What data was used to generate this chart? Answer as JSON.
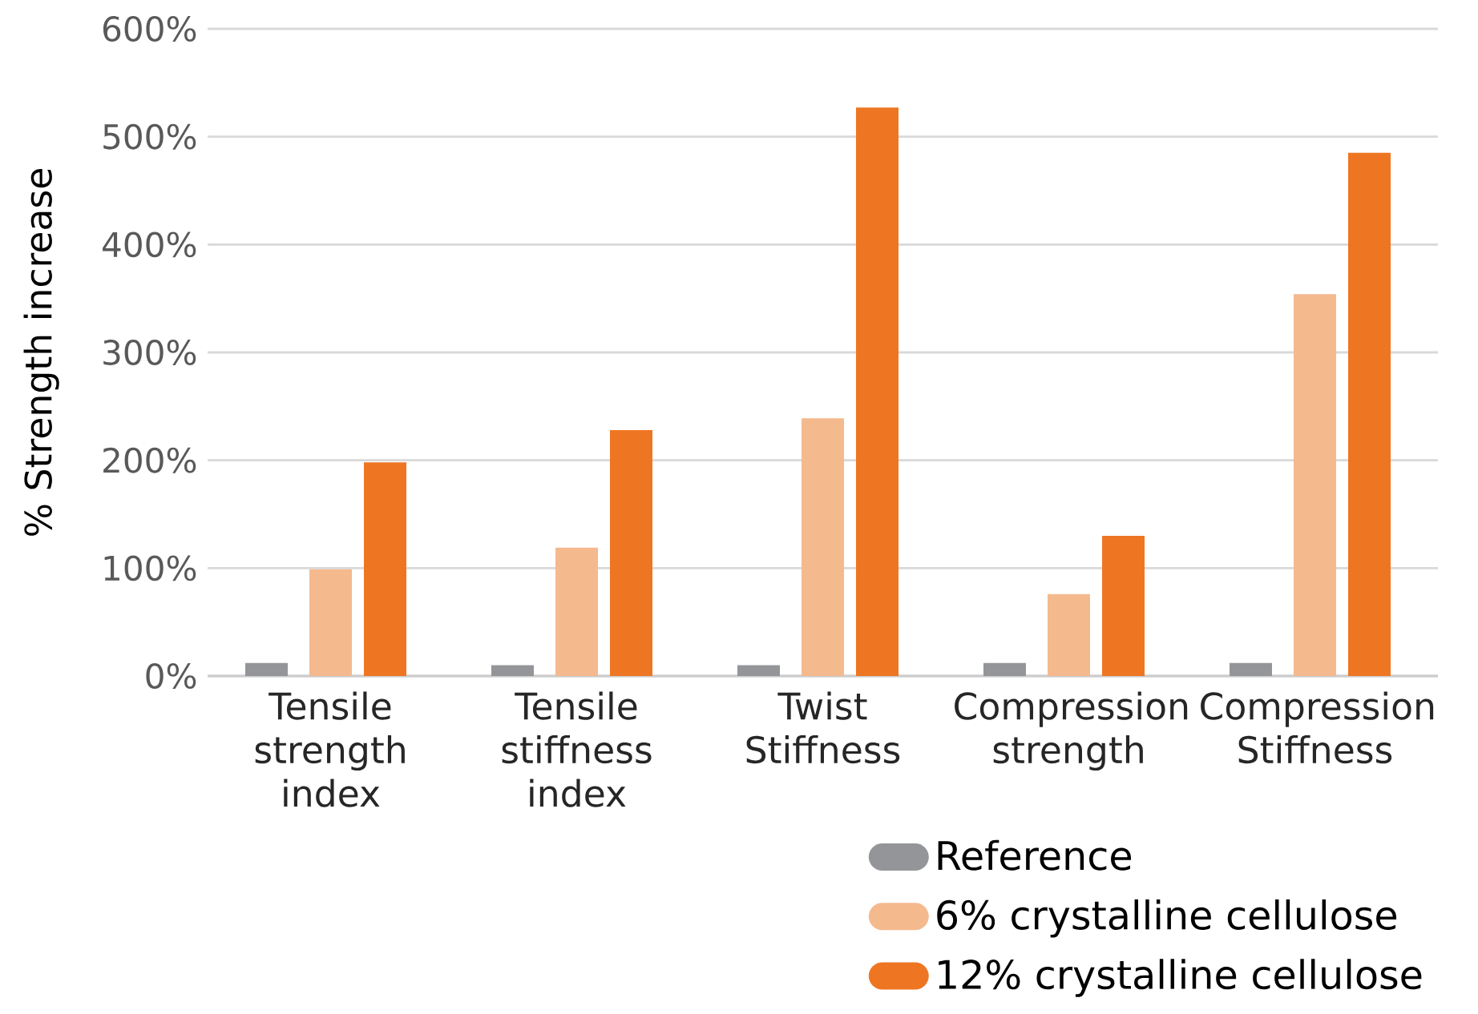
{
  "chart_data": {
    "type": "bar",
    "ylabel": "% Strength increase",
    "categories": [
      "Tensile strength index",
      "Tensile stiffness index",
      "Twist Stiffness",
      "Compression strength",
      "Compression Stiffness"
    ],
    "series": [
      {
        "name": "Reference",
        "color": "#939598",
        "values": [
          12,
          10,
          10,
          12,
          12
        ]
      },
      {
        "name": "6% crystalline cellulose",
        "color": "#f5b98e",
        "values": [
          99,
          119,
          239,
          76,
          354
        ]
      },
      {
        "name": "12% crystalline cellulose",
        "color": "#ee7623",
        "values": [
          198,
          228,
          527,
          130,
          485
        ]
      }
    ],
    "ylim": [
      0,
      600
    ],
    "yticks": [
      {
        "value": 0,
        "label": "0%"
      },
      {
        "value": 100,
        "label": "100%"
      },
      {
        "value": 200,
        "label": "200%"
      },
      {
        "value": 300,
        "label": "300%"
      },
      {
        "value": 400,
        "label": "400%"
      },
      {
        "value": 500,
        "label": "500%"
      },
      {
        "value": 600,
        "label": "600%"
      }
    ],
    "grid": "y",
    "legend": "bottom right"
  }
}
